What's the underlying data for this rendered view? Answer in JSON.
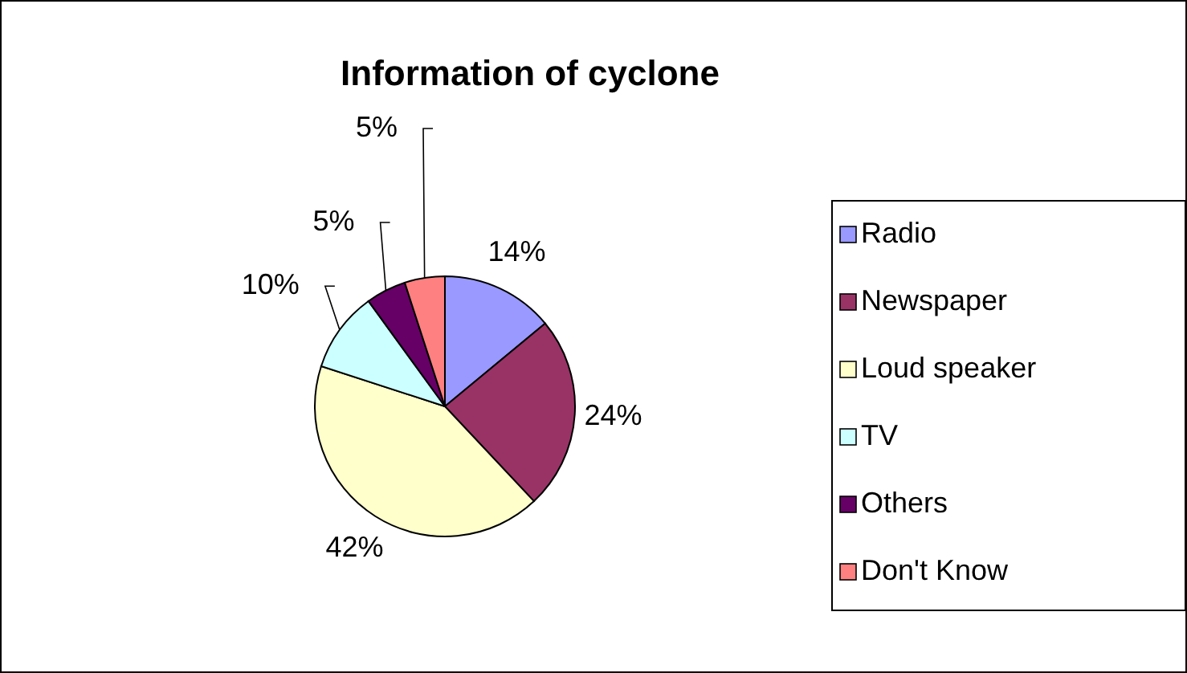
{
  "chart_data": {
    "type": "pie",
    "title": "Information of cyclone",
    "categories": [
      "Radio",
      "Newspaper",
      "Loud speaker",
      "TV",
      "Others",
      "Don't Know"
    ],
    "values": [
      14,
      24,
      42,
      10,
      5,
      5
    ],
    "colors": [
      "#9999ff",
      "#993366",
      "#ffffcc",
      "#ccffff",
      "#660066",
      "#ff8080"
    ],
    "value_labels": [
      "14%",
      "24%",
      "42%",
      "10%",
      "5%",
      "5%"
    ],
    "legend": "right"
  }
}
